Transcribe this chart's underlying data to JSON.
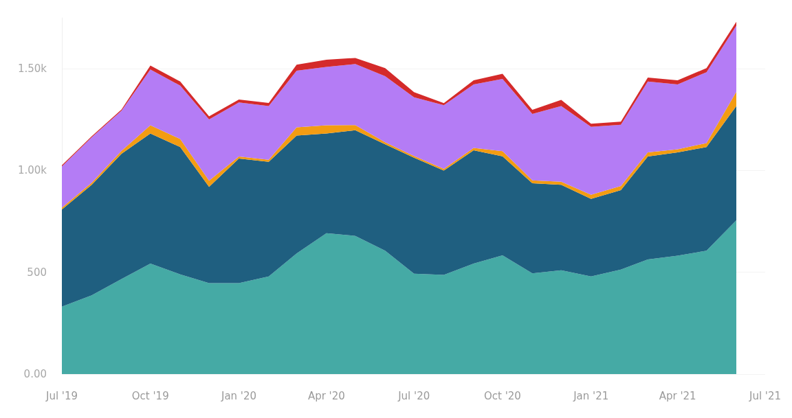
{
  "chart_data": {
    "type": "area",
    "stacked": true,
    "grid": "y",
    "x": [
      "2019-07",
      "2019-08",
      "2019-09",
      "2019-10",
      "2019-11",
      "2019-12",
      "2020-01",
      "2020-02",
      "2020-03",
      "2020-04",
      "2020-05",
      "2020-06",
      "2020-07",
      "2020-08",
      "2020-09",
      "2020-10",
      "2020-11",
      "2020-12",
      "2021-01",
      "2021-02",
      "2021-03",
      "2021-04",
      "2021-05",
      "2021-06"
    ],
    "xlim": [
      "2019-07",
      "2021-07"
    ],
    "xticks": [
      {
        "value": "2019-07",
        "label": "Jul '19"
      },
      {
        "value": "2019-10",
        "label": "Oct '19"
      },
      {
        "value": "2020-01",
        "label": "Jan '20"
      },
      {
        "value": "2020-04",
        "label": "Apr '20"
      },
      {
        "value": "2020-07",
        "label": "Jul '20"
      },
      {
        "value": "2020-10",
        "label": "Oct '20"
      },
      {
        "value": "2021-01",
        "label": "Jan '21"
      },
      {
        "value": "2021-04",
        "label": "Apr '21"
      },
      {
        "value": "2021-07",
        "label": "Jul '21"
      }
    ],
    "ylim": [
      0,
      1750
    ],
    "yticks": [
      {
        "value": 0,
        "label": "0.00"
      },
      500,
      {
        "value": 1000,
        "label": "1.00k"
      },
      {
        "value": 1500,
        "label": "1.50k"
      }
    ],
    "series": [
      {
        "color": "#45aaa5",
        "values": [
          331,
          387,
          467,
          543,
          490,
          447,
          447,
          480,
          593,
          692,
          679,
          606,
          493,
          487,
          543,
          583,
          495,
          510,
          480,
          513,
          563,
          582,
          606,
          755
        ]
      },
      {
        "color": "#1f5f80",
        "values": [
          477,
          543,
          615,
          639,
          625,
          473,
          612,
          563,
          579,
          490,
          519,
          523,
          570,
          513,
          556,
          487,
          442,
          420,
          381,
          391,
          506,
          507,
          509,
          562
        ]
      },
      {
        "color": "#f39c12",
        "values": [
          10,
          10,
          15,
          40,
          40,
          30,
          10,
          10,
          40,
          40,
          25,
          10,
          8,
          8,
          12,
          25,
          15,
          15,
          20,
          20,
          20,
          15,
          20,
          70
        ]
      },
      {
        "color": "#b47cf5",
        "values": [
          202,
          223,
          197,
          274,
          262,
          301,
          265,
          264,
          278,
          287,
          300,
          324,
          289,
          313,
          312,
          355,
          326,
          372,
          334,
          301,
          348,
          319,
          348,
          324
        ]
      },
      {
        "color": "#d42a2a",
        "values": [
          6,
          5,
          6,
          20,
          20,
          15,
          15,
          15,
          30,
          35,
          30,
          40,
          25,
          10,
          20,
          25,
          20,
          30,
          15,
          15,
          20,
          20,
          20,
          20
        ]
      }
    ]
  }
}
